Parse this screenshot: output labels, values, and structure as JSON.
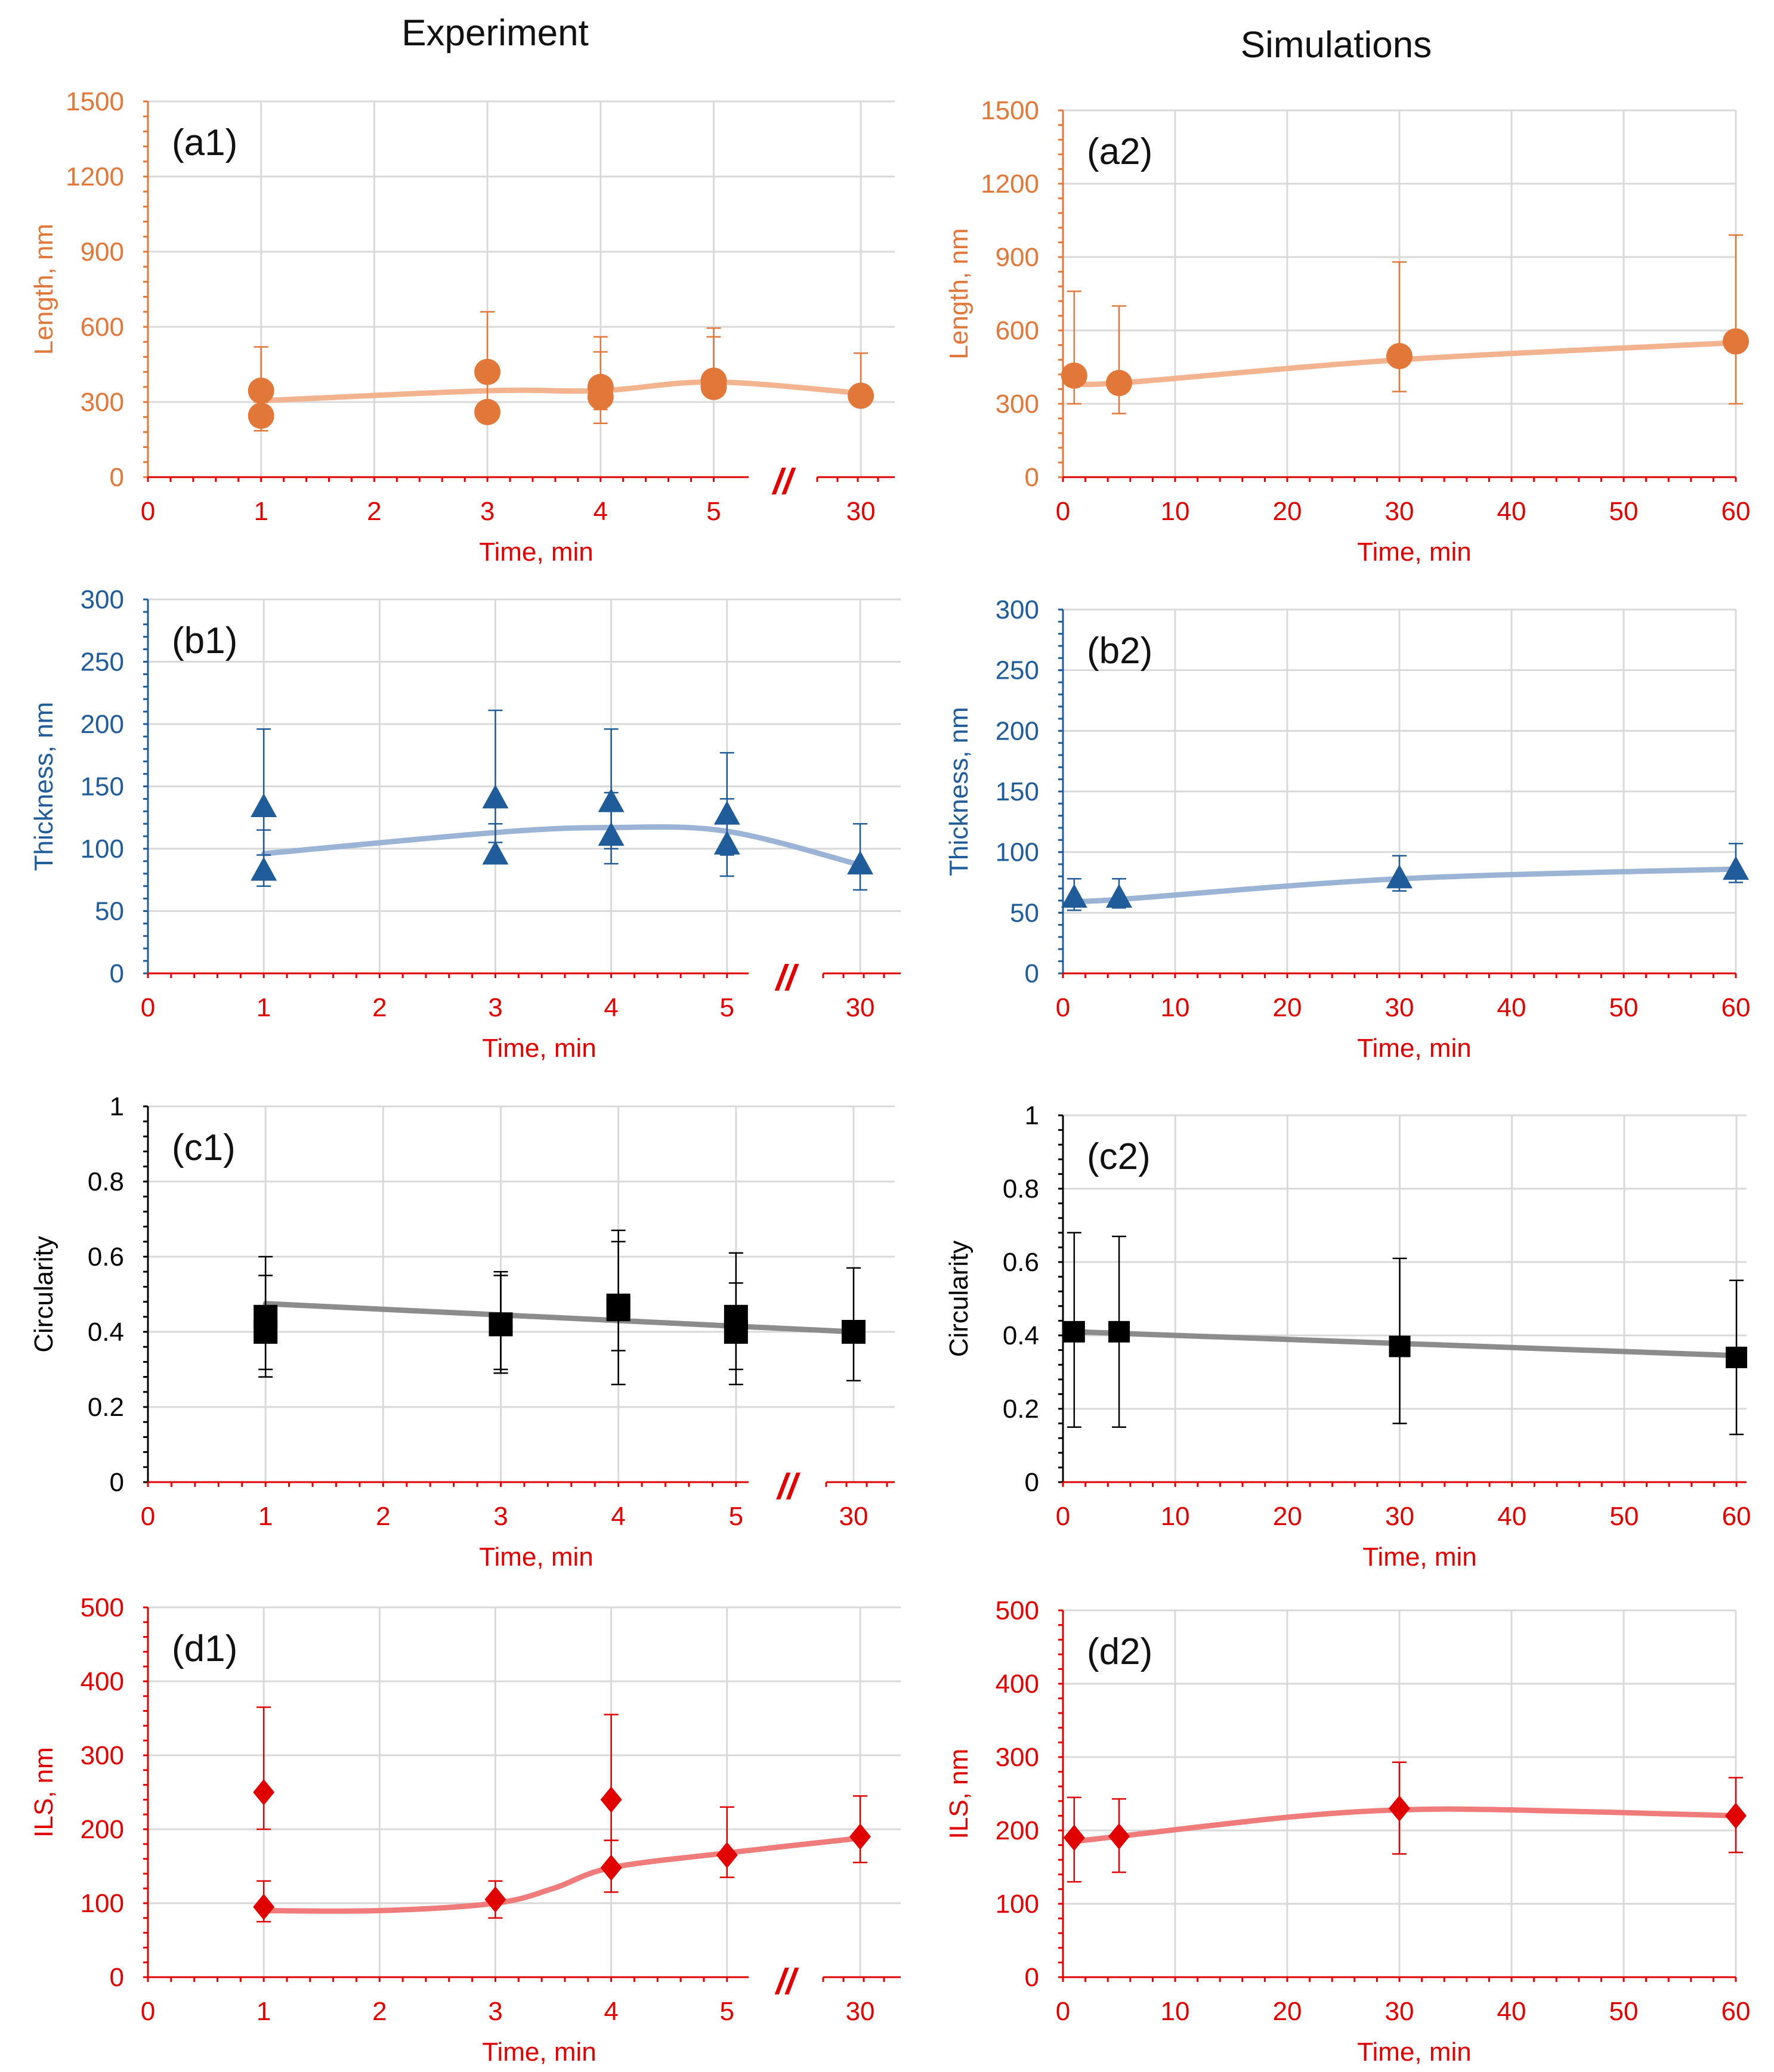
{
  "headers": {
    "left": "Experiment",
    "right": "Simulations"
  },
  "colors": {
    "orange": "#E2773A",
    "blue": "#1F5C99",
    "black": "#000000",
    "red": "#E00000",
    "grid": "#D9D9D9",
    "orange_line": "#F2B38E",
    "blue_line": "#9BB4D6",
    "black_line": "#8C8C8C",
    "red_line": "#F07B7B"
  },
  "chart_data": [
    {
      "id": "a1",
      "panel_label": "(a1)",
      "type": "scatter",
      "marker": "circle",
      "color_key": "orange",
      "ylabel": "Length, nm",
      "xlabel": "Time, min",
      "ylim": [
        0,
        1500
      ],
      "yticks": [
        "0",
        "300",
        "600",
        "900",
        "1200",
        "1500"
      ],
      "ytick_values": [
        0,
        300,
        600,
        900,
        1200,
        1500
      ],
      "xaxis": "broken",
      "xticks": [
        "0",
        "1",
        "2",
        "3",
        "4",
        "5",
        "30"
      ],
      "xtick_positions": [
        0,
        1,
        2,
        3,
        4,
        5,
        6.3
      ],
      "axis_break": "//",
      "points": [
        {
          "x": 1,
          "y": 345,
          "err_up": 520,
          "err_lo": 250
        },
        {
          "x": 1,
          "y": 245,
          "err_up": 300,
          "err_lo": 185
        },
        {
          "x": 3,
          "y": 420,
          "err_up": 660,
          "err_lo": 300
        },
        {
          "x": 3,
          "y": 260,
          "err_up": 300,
          "err_lo": 240
        },
        {
          "x": 4,
          "y": 360,
          "err_up": 560,
          "err_lo": 270
        },
        {
          "x": 4,
          "y": 320,
          "err_up": 500,
          "err_lo": 215
        },
        {
          "x": 5,
          "y": 385,
          "err_up": 595,
          "err_lo": 360
        },
        {
          "x": 5,
          "y": 360,
          "err_up": 560,
          "err_lo": 340
        },
        {
          "x": 6.3,
          "y": 325,
          "err_up": 495,
          "err_lo": 305
        }
      ],
      "trend": [
        [
          1,
          305
        ],
        [
          3,
          345
        ],
        [
          4,
          345
        ],
        [
          5,
          380
        ],
        [
          6.3,
          335
        ]
      ]
    },
    {
      "id": "a2",
      "panel_label": "(a2)",
      "type": "scatter",
      "marker": "circle",
      "color_key": "orange",
      "ylabel": "Length, nm",
      "xlabel": "Time, min",
      "ylim": [
        0,
        1500
      ],
      "xlim": [
        0,
        60
      ],
      "yticks": [
        "0",
        "300",
        "600",
        "900",
        "1200",
        "1500"
      ],
      "ytick_values": [
        0,
        300,
        600,
        900,
        1200,
        1500
      ],
      "xaxis": "linear",
      "xticks": [
        "0",
        "10",
        "20",
        "30",
        "40",
        "50",
        "60"
      ],
      "xtick_positions": [
        0,
        10,
        20,
        30,
        40,
        50,
        60
      ],
      "points": [
        {
          "x": 1,
          "y": 415,
          "err_up": 760,
          "err_lo": 300
        },
        {
          "x": 5,
          "y": 385,
          "err_up": 700,
          "err_lo": 260
        },
        {
          "x": 30,
          "y": 495,
          "err_up": 880,
          "err_lo": 350
        },
        {
          "x": 60,
          "y": 555,
          "err_up": 990,
          "err_lo": 300
        }
      ],
      "trend": [
        [
          1,
          390
        ],
        [
          5,
          385
        ],
        [
          30,
          480
        ],
        [
          60,
          550
        ]
      ]
    },
    {
      "id": "b1",
      "panel_label": "(b1)",
      "type": "scatter",
      "marker": "triangle",
      "color_key": "blue",
      "ylabel": "Thickness, nm",
      "xlabel": "Time, min",
      "ylim": [
        0,
        300
      ],
      "yticks": [
        "0",
        "50",
        "100",
        "150",
        "200",
        "250",
        "300"
      ],
      "ytick_values": [
        0,
        50,
        100,
        150,
        200,
        250,
        300
      ],
      "xaxis": "broken",
      "xticks": [
        "0",
        "1",
        "2",
        "3",
        "4",
        "5",
        "30"
      ],
      "xtick_positions": [
        0,
        1,
        2,
        3,
        4,
        5,
        6.15
      ],
      "axis_break": "//",
      "points": [
        {
          "x": 1,
          "y": 133,
          "err_up": 196,
          "err_lo": 95
        },
        {
          "x": 1,
          "y": 82,
          "err_up": 115,
          "err_lo": 70
        },
        {
          "x": 3,
          "y": 140,
          "err_up": 211,
          "err_lo": 105
        },
        {
          "x": 3,
          "y": 95,
          "err_up": 120,
          "err_lo": 90
        },
        {
          "x": 4,
          "y": 137,
          "err_up": 196,
          "err_lo": 100
        },
        {
          "x": 4,
          "y": 110,
          "err_up": 145,
          "err_lo": 88
        },
        {
          "x": 5,
          "y": 127,
          "err_up": 177,
          "err_lo": 95
        },
        {
          "x": 5,
          "y": 103,
          "err_up": 140,
          "err_lo": 78
        },
        {
          "x": 6.15,
          "y": 87,
          "err_up": 120,
          "err_lo": 67
        }
      ],
      "trend": [
        [
          1,
          96
        ],
        [
          3,
          113
        ],
        [
          4,
          117
        ],
        [
          5,
          114
        ],
        [
          6.15,
          87
        ]
      ]
    },
    {
      "id": "b2",
      "panel_label": "(b2)",
      "type": "scatter",
      "marker": "triangle",
      "color_key": "blue",
      "ylabel": "Thickness, nm",
      "xlabel": "Time, min",
      "ylim": [
        0,
        300
      ],
      "xlim": [
        0,
        60
      ],
      "yticks": [
        "0",
        "50",
        "100",
        "150",
        "200",
        "250",
        "300"
      ],
      "ytick_values": [
        0,
        50,
        100,
        150,
        200,
        250,
        300
      ],
      "xaxis": "linear",
      "xticks": [
        "0",
        "10",
        "20",
        "30",
        "40",
        "50",
        "60"
      ],
      "xtick_positions": [
        0,
        10,
        20,
        30,
        40,
        50,
        60
      ],
      "points": [
        {
          "x": 1,
          "y": 62,
          "err_up": 78,
          "err_lo": 52
        },
        {
          "x": 5,
          "y": 62,
          "err_up": 78,
          "err_lo": 54
        },
        {
          "x": 30,
          "y": 78,
          "err_up": 97,
          "err_lo": 68
        },
        {
          "x": 60,
          "y": 85,
          "err_up": 107,
          "err_lo": 75
        }
      ],
      "trend": [
        [
          1,
          60
        ],
        [
          5,
          61
        ],
        [
          30,
          78
        ],
        [
          60,
          86
        ]
      ]
    },
    {
      "id": "c1",
      "panel_label": "(c1)",
      "type": "scatter",
      "marker": "square",
      "color_key": "black",
      "ylabel": "Circularity",
      "xlabel": "Time, min",
      "ylim": [
        0,
        1
      ],
      "yticks": [
        "0",
        "0.2",
        "0.4",
        "0.6",
        "0.8",
        "1"
      ],
      "ytick_values": [
        0,
        0.2,
        0.4,
        0.6,
        0.8,
        1
      ],
      "xaxis": "broken",
      "xticks": [
        "0",
        "1",
        "2",
        "3",
        "4",
        "5",
        "30"
      ],
      "xtick_positions": [
        0,
        1,
        2,
        3,
        4,
        5,
        6.0
      ],
      "axis_break": "//",
      "points": [
        {
          "x": 1,
          "y": 0.44,
          "err_up": 0.6,
          "err_lo": 0.3
        },
        {
          "x": 1,
          "y": 0.4,
          "err_up": 0.55,
          "err_lo": 0.28
        },
        {
          "x": 3,
          "y": 0.42,
          "err_up": 0.56,
          "err_lo": 0.3
        },
        {
          "x": 3,
          "y": 0.42,
          "err_up": 0.55,
          "err_lo": 0.29
        },
        {
          "x": 4,
          "y": 0.47,
          "err_up": 0.67,
          "err_lo": 0.35
        },
        {
          "x": 4,
          "y": 0.46,
          "err_up": 0.64,
          "err_lo": 0.26
        },
        {
          "x": 5,
          "y": 0.44,
          "err_up": 0.61,
          "err_lo": 0.3
        },
        {
          "x": 5,
          "y": 0.4,
          "err_up": 0.53,
          "err_lo": 0.26
        },
        {
          "x": 6.0,
          "y": 0.4,
          "err_up": 0.57,
          "err_lo": 0.27
        }
      ],
      "trend": [
        [
          1,
          0.475
        ],
        [
          6.0,
          0.4
        ]
      ]
    },
    {
      "id": "c2",
      "panel_label": "(c2)",
      "type": "scatter",
      "marker": "square",
      "color_key": "black",
      "ylabel": "Circularity",
      "xlabel": "Time, min",
      "ylim": [
        0,
        1
      ],
      "xlim": [
        0,
        60
      ],
      "yticks": [
        "0",
        "0.2",
        "0.4",
        "0.6",
        "0.8",
        "1"
      ],
      "ytick_values": [
        0,
        0.2,
        0.4,
        0.6,
        0.8,
        1
      ],
      "xaxis": "linear",
      "xticks": [
        "0",
        "10",
        "20",
        "30",
        "40",
        "50",
        "60"
      ],
      "xtick_positions": [
        0,
        10,
        20,
        30,
        40,
        50,
        60
      ],
      "points": [
        {
          "x": 1,
          "y": 0.41,
          "err_up": 0.68,
          "err_lo": 0.15
        },
        {
          "x": 5,
          "y": 0.41,
          "err_up": 0.67,
          "err_lo": 0.15
        },
        {
          "x": 30,
          "y": 0.37,
          "err_up": 0.61,
          "err_lo": 0.16
        },
        {
          "x": 60,
          "y": 0.34,
          "err_up": 0.55,
          "err_lo": 0.13
        }
      ],
      "trend": [
        [
          1,
          0.41
        ],
        [
          60,
          0.345
        ]
      ]
    },
    {
      "id": "d1",
      "panel_label": "(d1)",
      "type": "scatter",
      "marker": "diamond",
      "color_key": "red",
      "ylabel": "ILS, nm",
      "xlabel": "Time, min",
      "ylim": [
        0,
        500
      ],
      "yticks": [
        "0",
        "100",
        "200",
        "300",
        "400",
        "500"
      ],
      "ytick_values": [
        0,
        100,
        200,
        300,
        400,
        500
      ],
      "xaxis": "broken",
      "xticks": [
        "0",
        "1",
        "2",
        "3",
        "4",
        "5",
        "30"
      ],
      "xtick_positions": [
        0,
        1,
        2,
        3,
        4,
        5,
        6.15
      ],
      "axis_break": "//",
      "points": [
        {
          "x": 1,
          "y": 250,
          "err_up": 365,
          "err_lo": 200
        },
        {
          "x": 1,
          "y": 95,
          "err_up": 130,
          "err_lo": 75
        },
        {
          "x": 3,
          "y": 105,
          "err_up": 130,
          "err_lo": 80
        },
        {
          "x": 4,
          "y": 240,
          "err_up": 355,
          "err_lo": 185
        },
        {
          "x": 4,
          "y": 148,
          "err_up": 185,
          "err_lo": 115
        },
        {
          "x": 5,
          "y": 165,
          "err_up": 230,
          "err_lo": 135
        },
        {
          "x": 6.15,
          "y": 190,
          "err_up": 245,
          "err_lo": 155
        }
      ],
      "trend": [
        [
          1,
          90
        ],
        [
          2,
          90
        ],
        [
          3,
          100
        ],
        [
          3.5,
          120
        ],
        [
          4,
          148
        ],
        [
          5,
          168
        ],
        [
          6.15,
          188
        ]
      ]
    },
    {
      "id": "d2",
      "panel_label": "(d2)",
      "type": "scatter",
      "marker": "diamond",
      "color_key": "red",
      "ylabel": "ILS, nm",
      "xlabel": "Time, min",
      "ylim": [
        0,
        500
      ],
      "xlim": [
        0,
        60
      ],
      "yticks": [
        "0",
        "100",
        "200",
        "300",
        "400",
        "500"
      ],
      "ytick_values": [
        0,
        100,
        200,
        300,
        400,
        500
      ],
      "xaxis": "linear",
      "xticks": [
        "0",
        "10",
        "20",
        "30",
        "40",
        "50",
        "60"
      ],
      "xtick_positions": [
        0,
        10,
        20,
        30,
        40,
        50,
        60
      ],
      "points": [
        {
          "x": 1,
          "y": 190,
          "err_up": 245,
          "err_lo": 130
        },
        {
          "x": 5,
          "y": 192,
          "err_up": 243,
          "err_lo": 143
        },
        {
          "x": 30,
          "y": 230,
          "err_up": 293,
          "err_lo": 168
        },
        {
          "x": 60,
          "y": 220,
          "err_up": 272,
          "err_lo": 170
        }
      ],
      "trend": [
        [
          1,
          185
        ],
        [
          5,
          192
        ],
        [
          20,
          218
        ],
        [
          30,
          228
        ],
        [
          40,
          228
        ],
        [
          60,
          220
        ]
      ]
    }
  ]
}
